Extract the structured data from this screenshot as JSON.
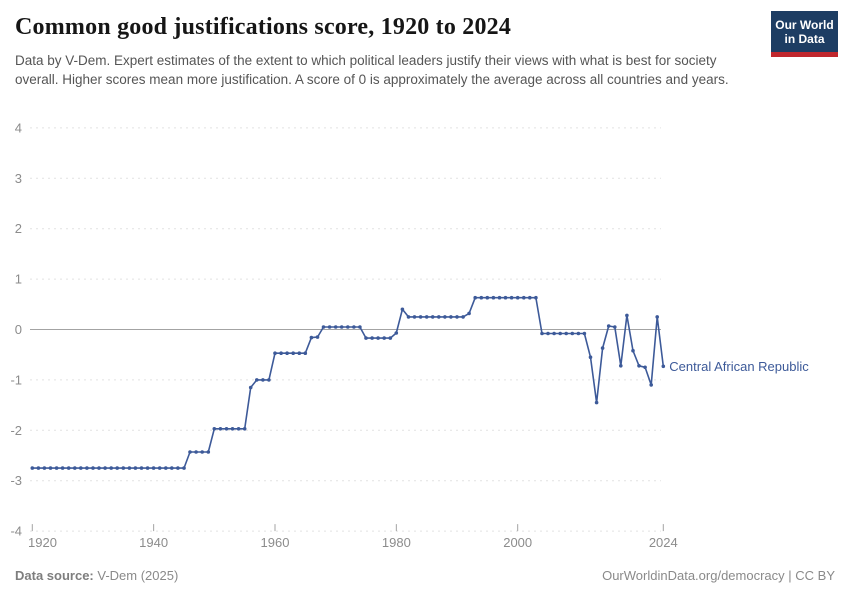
{
  "header": {
    "title": "Common good justifications score, 1920 to 2024",
    "subtitle": "Data by V-Dem. Expert estimates of the extent to which political leaders justify their views with what is best for society overall. Higher scores mean more justification. A score of 0 is approximately the average across all countries and years.",
    "logo_line1": "Our World",
    "logo_line2": "in Data"
  },
  "footer": {
    "source_label": "Data source:",
    "source_value": " V-Dem (2025)",
    "right_link": "OurWorldinData.org/democracy",
    "separator": " | ",
    "license": "CC BY"
  },
  "colors": {
    "line": "#3d5a99",
    "entity_label": "#3d5a99",
    "grid": "#e2e2e2",
    "zero_line": "#a3a3a3",
    "axis_text": "#8c8c8c",
    "tick": "#a3a3a3",
    "logo_bg": "#1d3d63",
    "logo_bar": "#c0272d"
  },
  "chart_data": {
    "type": "line",
    "title": "Common good justifications score, 1920 to 2024",
    "xlabel": "",
    "ylabel": "",
    "xlim": [
      1920,
      2024
    ],
    "ylim": [
      -4,
      4
    ],
    "x_ticks": [
      1920,
      1940,
      1960,
      1980,
      2000,
      2024
    ],
    "y_ticks": [
      4,
      3,
      2,
      1,
      0,
      -1,
      -2,
      -3,
      -4
    ],
    "grid": "horizontal-dashed",
    "legend": "end-of-line label",
    "series": [
      {
        "name": "Central African Republic",
        "points": [
          [
            1920,
            -2.75
          ],
          [
            1921,
            -2.75
          ],
          [
            1922,
            -2.75
          ],
          [
            1923,
            -2.75
          ],
          [
            1924,
            -2.75
          ],
          [
            1925,
            -2.75
          ],
          [
            1926,
            -2.75
          ],
          [
            1927,
            -2.75
          ],
          [
            1928,
            -2.75
          ],
          [
            1929,
            -2.75
          ],
          [
            1930,
            -2.75
          ],
          [
            1931,
            -2.75
          ],
          [
            1932,
            -2.75
          ],
          [
            1933,
            -2.75
          ],
          [
            1934,
            -2.75
          ],
          [
            1935,
            -2.75
          ],
          [
            1936,
            -2.75
          ],
          [
            1937,
            -2.75
          ],
          [
            1938,
            -2.75
          ],
          [
            1939,
            -2.75
          ],
          [
            1940,
            -2.75
          ],
          [
            1941,
            -2.75
          ],
          [
            1942,
            -2.75
          ],
          [
            1943,
            -2.75
          ],
          [
            1944,
            -2.75
          ],
          [
            1945,
            -2.75
          ],
          [
            1946,
            -2.43
          ],
          [
            1947,
            -2.43
          ],
          [
            1948,
            -2.43
          ],
          [
            1949,
            -2.43
          ],
          [
            1950,
            -1.97
          ],
          [
            1951,
            -1.97
          ],
          [
            1952,
            -1.97
          ],
          [
            1953,
            -1.97
          ],
          [
            1954,
            -1.97
          ],
          [
            1955,
            -1.97
          ],
          [
            1956,
            -1.15
          ],
          [
            1957,
            -1.0
          ],
          [
            1958,
            -1.0
          ],
          [
            1959,
            -1.0
          ],
          [
            1960,
            -0.47
          ],
          [
            1961,
            -0.47
          ],
          [
            1962,
            -0.47
          ],
          [
            1963,
            -0.47
          ],
          [
            1964,
            -0.47
          ],
          [
            1965,
            -0.47
          ],
          [
            1966,
            -0.16
          ],
          [
            1967,
            -0.15
          ],
          [
            1968,
            0.05
          ],
          [
            1969,
            0.05
          ],
          [
            1970,
            0.05
          ],
          [
            1971,
            0.05
          ],
          [
            1972,
            0.05
          ],
          [
            1973,
            0.05
          ],
          [
            1974,
            0.05
          ],
          [
            1975,
            -0.17
          ],
          [
            1976,
            -0.17
          ],
          [
            1977,
            -0.17
          ],
          [
            1978,
            -0.17
          ],
          [
            1979,
            -0.17
          ],
          [
            1980,
            -0.07
          ],
          [
            1981,
            0.4
          ],
          [
            1982,
            0.25
          ],
          [
            1983,
            0.25
          ],
          [
            1984,
            0.25
          ],
          [
            1985,
            0.25
          ],
          [
            1986,
            0.25
          ],
          [
            1987,
            0.25
          ],
          [
            1988,
            0.25
          ],
          [
            1989,
            0.25
          ],
          [
            1990,
            0.25
          ],
          [
            1991,
            0.25
          ],
          [
            1992,
            0.32
          ],
          [
            1993,
            0.63
          ],
          [
            1994,
            0.63
          ],
          [
            1995,
            0.63
          ],
          [
            1996,
            0.63
          ],
          [
            1997,
            0.63
          ],
          [
            1998,
            0.63
          ],
          [
            1999,
            0.63
          ],
          [
            2000,
            0.63
          ],
          [
            2001,
            0.63
          ],
          [
            2002,
            0.63
          ],
          [
            2003,
            0.63
          ],
          [
            2004,
            -0.08
          ],
          [
            2005,
            -0.08
          ],
          [
            2006,
            -0.08
          ],
          [
            2007,
            -0.08
          ],
          [
            2008,
            -0.08
          ],
          [
            2009,
            -0.08
          ],
          [
            2010,
            -0.08
          ],
          [
            2011,
            -0.08
          ],
          [
            2012,
            -0.55
          ],
          [
            2013,
            -1.45
          ],
          [
            2014,
            -0.37
          ],
          [
            2015,
            0.07
          ],
          [
            2016,
            0.05
          ],
          [
            2017,
            -0.72
          ],
          [
            2018,
            0.28
          ],
          [
            2019,
            -0.42
          ],
          [
            2020,
            -0.72
          ],
          [
            2021,
            -0.75
          ],
          [
            2022,
            -1.1
          ],
          [
            2023,
            0.25
          ],
          [
            2024,
            -0.73
          ]
        ]
      }
    ]
  }
}
